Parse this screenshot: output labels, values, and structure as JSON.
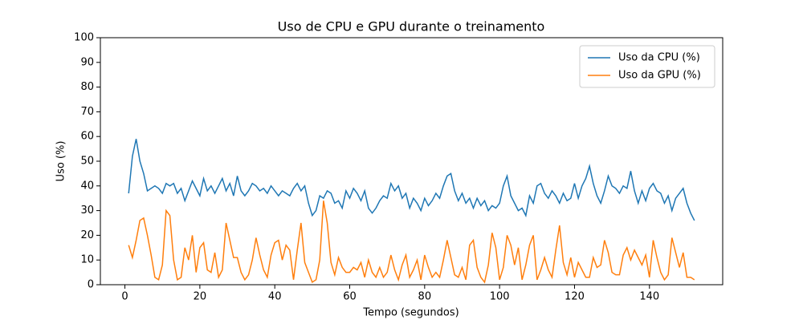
{
  "chart_data": {
    "type": "line",
    "title": "Uso de CPU e GPU durante o treinamento",
    "x_label": "Tempo (segundos)",
    "y_label": "Uso (%)",
    "x": [
      1,
      2,
      3,
      4,
      5,
      6,
      7,
      8,
      9,
      10,
      11,
      12,
      13,
      14,
      15,
      16,
      17,
      18,
      19,
      20,
      21,
      22,
      23,
      24,
      25,
      26,
      27,
      28,
      29,
      30,
      31,
      32,
      33,
      34,
      35,
      36,
      37,
      38,
      39,
      40,
      41,
      42,
      43,
      44,
      45,
      46,
      47,
      48,
      49,
      50,
      51,
      52,
      53,
      54,
      55,
      56,
      57,
      58,
      59,
      60,
      61,
      62,
      63,
      64,
      65,
      66,
      67,
      68,
      69,
      70,
      71,
      72,
      73,
      74,
      75,
      76,
      77,
      78,
      79,
      80,
      81,
      82,
      83,
      84,
      85,
      86,
      87,
      88,
      89,
      90,
      91,
      92,
      93,
      94,
      95,
      96,
      97,
      98,
      99,
      100,
      101,
      102,
      103,
      104,
      105,
      106,
      107,
      108,
      109,
      110,
      111,
      112,
      113,
      114,
      115,
      116,
      117,
      118,
      119,
      120,
      121,
      122,
      123,
      124,
      125,
      126,
      127,
      128,
      129,
      130,
      131,
      132,
      133,
      134,
      135,
      136,
      137,
      138,
      139,
      140,
      141,
      142,
      143,
      144,
      145,
      146,
      147,
      148,
      149,
      150,
      151,
      152
    ],
    "series": [
      {
        "name": "Uso da CPU (%)",
        "color": "#1f77b4",
        "values": [
          37,
          52,
          59,
          50,
          45,
          38,
          39,
          40,
          39,
          37,
          41,
          40,
          41,
          37,
          39,
          34,
          38,
          42,
          39,
          36,
          43,
          38,
          40,
          37,
          40,
          43,
          38,
          41,
          36,
          44,
          38,
          36,
          38,
          41,
          40,
          38,
          39,
          37,
          40,
          38,
          36,
          38,
          37,
          36,
          39,
          41,
          38,
          40,
          33,
          28,
          30,
          36,
          35,
          38,
          37,
          33,
          34,
          31,
          38,
          35,
          39,
          37,
          34,
          38,
          31,
          29,
          31,
          34,
          36,
          35,
          41,
          38,
          40,
          35,
          37,
          31,
          35,
          33,
          30,
          35,
          32,
          34,
          37,
          35,
          40,
          44,
          45,
          38,
          34,
          37,
          33,
          35,
          31,
          35,
          32,
          34,
          30,
          32,
          31,
          33,
          40,
          44,
          36,
          33,
          30,
          31,
          28,
          36,
          33,
          40,
          41,
          37,
          35,
          38,
          36,
          33,
          37,
          34,
          35,
          41,
          35,
          40,
          43,
          48,
          41,
          36,
          33,
          38,
          44,
          40,
          39,
          37,
          40,
          39,
          46,
          38,
          33,
          38,
          34,
          39,
          41,
          38,
          37,
          33,
          36,
          30,
          35,
          37,
          39,
          33,
          29,
          26
        ]
      },
      {
        "name": "Uso da GPU (%)",
        "color": "#ff7f0e",
        "values": [
          16,
          11,
          18,
          26,
          27,
          20,
          12,
          3,
          2,
          8,
          30,
          28,
          10,
          2,
          3,
          15,
          10,
          20,
          5,
          15,
          17,
          6,
          5,
          13,
          3,
          6,
          25,
          18,
          11,
          11,
          5,
          2,
          4,
          10,
          19,
          12,
          6,
          3,
          12,
          17,
          18,
          10,
          16,
          14,
          2,
          14,
          25,
          9,
          5,
          1,
          2,
          10,
          34,
          25,
          9,
          4,
          11,
          7,
          5,
          5,
          7,
          6,
          9,
          3,
          10,
          5,
          3,
          7,
          3,
          5,
          12,
          6,
          2,
          8,
          12,
          3,
          6,
          10,
          2,
          12,
          7,
          3,
          5,
          3,
          10,
          18,
          11,
          4,
          3,
          7,
          2,
          16,
          18,
          7,
          3,
          1,
          8,
          21,
          15,
          2,
          7,
          20,
          16,
          8,
          15,
          2,
          8,
          16,
          20,
          2,
          6,
          11,
          6,
          3,
          14,
          24,
          9,
          4,
          11,
          3,
          9,
          6,
          3,
          3,
          11,
          7,
          8,
          18,
          13,
          5,
          4,
          4,
          12,
          15,
          10,
          14,
          11,
          8,
          12,
          3,
          18,
          11,
          5,
          2,
          4,
          19,
          13,
          7,
          13,
          3,
          3,
          2
        ]
      }
    ],
    "xlim": [
      -6.55,
      159.55
    ],
    "xticks": [
      0,
      20,
      40,
      60,
      80,
      100,
      120,
      140
    ],
    "ylim": [
      0,
      100
    ],
    "yticks": [
      0,
      10,
      20,
      30,
      40,
      50,
      60,
      70,
      80,
      90,
      100
    ],
    "legend": "upper right"
  }
}
